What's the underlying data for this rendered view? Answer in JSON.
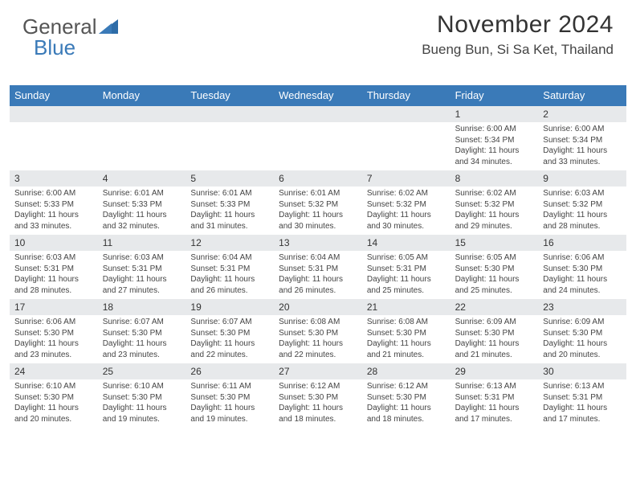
{
  "logo": {
    "text1": "General",
    "text2": "Blue"
  },
  "header": {
    "month_title": "November 2024",
    "location": "Bueng Bun, Si Sa Ket, Thailand"
  },
  "colors": {
    "header_bg": "#3a7ab8",
    "header_text": "#ffffff",
    "daynum_bg": "#e7e9eb",
    "body_text": "#444444"
  },
  "day_names": [
    "Sunday",
    "Monday",
    "Tuesday",
    "Wednesday",
    "Thursday",
    "Friday",
    "Saturday"
  ],
  "weeks": [
    [
      {
        "n": "",
        "sr": "",
        "ss": "",
        "dl": ""
      },
      {
        "n": "",
        "sr": "",
        "ss": "",
        "dl": ""
      },
      {
        "n": "",
        "sr": "",
        "ss": "",
        "dl": ""
      },
      {
        "n": "",
        "sr": "",
        "ss": "",
        "dl": ""
      },
      {
        "n": "",
        "sr": "",
        "ss": "",
        "dl": ""
      },
      {
        "n": "1",
        "sr": "Sunrise: 6:00 AM",
        "ss": "Sunset: 5:34 PM",
        "dl": "Daylight: 11 hours and 34 minutes."
      },
      {
        "n": "2",
        "sr": "Sunrise: 6:00 AM",
        "ss": "Sunset: 5:34 PM",
        "dl": "Daylight: 11 hours and 33 minutes."
      }
    ],
    [
      {
        "n": "3",
        "sr": "Sunrise: 6:00 AM",
        "ss": "Sunset: 5:33 PM",
        "dl": "Daylight: 11 hours and 33 minutes."
      },
      {
        "n": "4",
        "sr": "Sunrise: 6:01 AM",
        "ss": "Sunset: 5:33 PM",
        "dl": "Daylight: 11 hours and 32 minutes."
      },
      {
        "n": "5",
        "sr": "Sunrise: 6:01 AM",
        "ss": "Sunset: 5:33 PM",
        "dl": "Daylight: 11 hours and 31 minutes."
      },
      {
        "n": "6",
        "sr": "Sunrise: 6:01 AM",
        "ss": "Sunset: 5:32 PM",
        "dl": "Daylight: 11 hours and 30 minutes."
      },
      {
        "n": "7",
        "sr": "Sunrise: 6:02 AM",
        "ss": "Sunset: 5:32 PM",
        "dl": "Daylight: 11 hours and 30 minutes."
      },
      {
        "n": "8",
        "sr": "Sunrise: 6:02 AM",
        "ss": "Sunset: 5:32 PM",
        "dl": "Daylight: 11 hours and 29 minutes."
      },
      {
        "n": "9",
        "sr": "Sunrise: 6:03 AM",
        "ss": "Sunset: 5:32 PM",
        "dl": "Daylight: 11 hours and 28 minutes."
      }
    ],
    [
      {
        "n": "10",
        "sr": "Sunrise: 6:03 AM",
        "ss": "Sunset: 5:31 PM",
        "dl": "Daylight: 11 hours and 28 minutes."
      },
      {
        "n": "11",
        "sr": "Sunrise: 6:03 AM",
        "ss": "Sunset: 5:31 PM",
        "dl": "Daylight: 11 hours and 27 minutes."
      },
      {
        "n": "12",
        "sr": "Sunrise: 6:04 AM",
        "ss": "Sunset: 5:31 PM",
        "dl": "Daylight: 11 hours and 26 minutes."
      },
      {
        "n": "13",
        "sr": "Sunrise: 6:04 AM",
        "ss": "Sunset: 5:31 PM",
        "dl": "Daylight: 11 hours and 26 minutes."
      },
      {
        "n": "14",
        "sr": "Sunrise: 6:05 AM",
        "ss": "Sunset: 5:31 PM",
        "dl": "Daylight: 11 hours and 25 minutes."
      },
      {
        "n": "15",
        "sr": "Sunrise: 6:05 AM",
        "ss": "Sunset: 5:30 PM",
        "dl": "Daylight: 11 hours and 25 minutes."
      },
      {
        "n": "16",
        "sr": "Sunrise: 6:06 AM",
        "ss": "Sunset: 5:30 PM",
        "dl": "Daylight: 11 hours and 24 minutes."
      }
    ],
    [
      {
        "n": "17",
        "sr": "Sunrise: 6:06 AM",
        "ss": "Sunset: 5:30 PM",
        "dl": "Daylight: 11 hours and 23 minutes."
      },
      {
        "n": "18",
        "sr": "Sunrise: 6:07 AM",
        "ss": "Sunset: 5:30 PM",
        "dl": "Daylight: 11 hours and 23 minutes."
      },
      {
        "n": "19",
        "sr": "Sunrise: 6:07 AM",
        "ss": "Sunset: 5:30 PM",
        "dl": "Daylight: 11 hours and 22 minutes."
      },
      {
        "n": "20",
        "sr": "Sunrise: 6:08 AM",
        "ss": "Sunset: 5:30 PM",
        "dl": "Daylight: 11 hours and 22 minutes."
      },
      {
        "n": "21",
        "sr": "Sunrise: 6:08 AM",
        "ss": "Sunset: 5:30 PM",
        "dl": "Daylight: 11 hours and 21 minutes."
      },
      {
        "n": "22",
        "sr": "Sunrise: 6:09 AM",
        "ss": "Sunset: 5:30 PM",
        "dl": "Daylight: 11 hours and 21 minutes."
      },
      {
        "n": "23",
        "sr": "Sunrise: 6:09 AM",
        "ss": "Sunset: 5:30 PM",
        "dl": "Daylight: 11 hours and 20 minutes."
      }
    ],
    [
      {
        "n": "24",
        "sr": "Sunrise: 6:10 AM",
        "ss": "Sunset: 5:30 PM",
        "dl": "Daylight: 11 hours and 20 minutes."
      },
      {
        "n": "25",
        "sr": "Sunrise: 6:10 AM",
        "ss": "Sunset: 5:30 PM",
        "dl": "Daylight: 11 hours and 19 minutes."
      },
      {
        "n": "26",
        "sr": "Sunrise: 6:11 AM",
        "ss": "Sunset: 5:30 PM",
        "dl": "Daylight: 11 hours and 19 minutes."
      },
      {
        "n": "27",
        "sr": "Sunrise: 6:12 AM",
        "ss": "Sunset: 5:30 PM",
        "dl": "Daylight: 11 hours and 18 minutes."
      },
      {
        "n": "28",
        "sr": "Sunrise: 6:12 AM",
        "ss": "Sunset: 5:30 PM",
        "dl": "Daylight: 11 hours and 18 minutes."
      },
      {
        "n": "29",
        "sr": "Sunrise: 6:13 AM",
        "ss": "Sunset: 5:31 PM",
        "dl": "Daylight: 11 hours and 17 minutes."
      },
      {
        "n": "30",
        "sr": "Sunrise: 6:13 AM",
        "ss": "Sunset: 5:31 PM",
        "dl": "Daylight: 11 hours and 17 minutes."
      }
    ]
  ]
}
